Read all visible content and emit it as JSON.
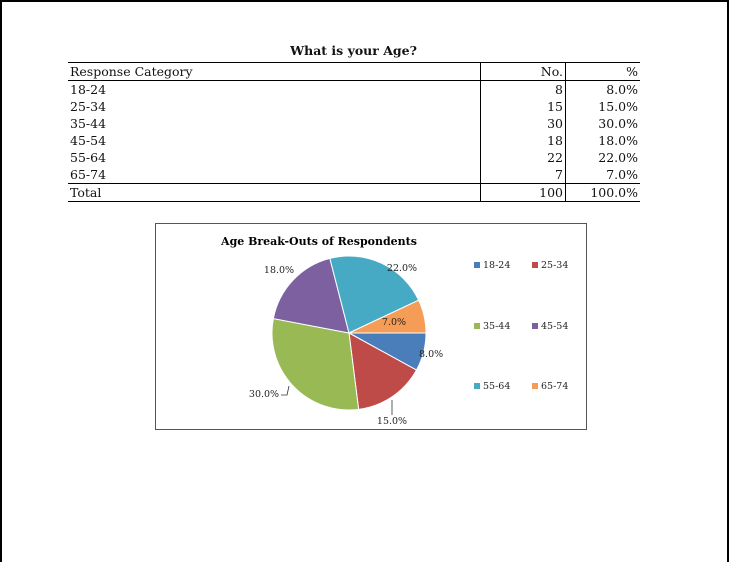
{
  "table": {
    "title": "What is your Age?",
    "headers": [
      "Response Category",
      "No.",
      "%"
    ],
    "rows": [
      {
        "cat": "18-24",
        "no": "8",
        "pct": "8.0%"
      },
      {
        "cat": "25-34",
        "no": "15",
        "pct": "15.0%"
      },
      {
        "cat": "35-44",
        "no": "30",
        "pct": "30.0%"
      },
      {
        "cat": "45-54",
        "no": "18",
        "pct": "18.0%"
      },
      {
        "cat": "55-64",
        "no": "22",
        "pct": "22.0%"
      },
      {
        "cat": "65-74",
        "no": "7",
        "pct": "7.0%"
      }
    ],
    "total": {
      "cat": "Total",
      "no": "100",
      "pct": "100.0%"
    }
  },
  "chart_data": {
    "type": "pie",
    "title": "Age Break-Outs of Respondents",
    "categories": [
      "18-24",
      "25-34",
      "35-44",
      "45-54",
      "55-64",
      "65-74"
    ],
    "values": [
      8,
      15,
      30,
      18,
      22,
      7
    ],
    "labels": [
      "8.0%",
      "15.0%",
      "30.0%",
      "18.0%",
      "22.0%",
      "7.0%"
    ],
    "colors": [
      "#4a7ebb",
      "#be4b48",
      "#98b954",
      "#7d60a0",
      "#46aac5",
      "#f59d56"
    ],
    "legend": "right"
  }
}
